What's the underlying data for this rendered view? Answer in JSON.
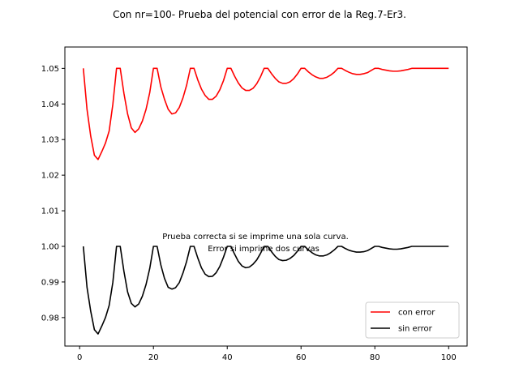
{
  "chart_data": {
    "type": "line",
    "title": "Con nr=100- Prueba del potencial con error de la Reg.7-Er3.",
    "xlabel": "",
    "ylabel": "",
    "xlim": [
      -4,
      105
    ],
    "ylim": [
      0.972,
      1.056
    ],
    "xticks": [
      0,
      20,
      40,
      60,
      80,
      100
    ],
    "yticks": [
      0.98,
      0.99,
      1.0,
      1.01,
      1.02,
      1.03,
      1.04,
      1.05
    ],
    "ytick_labels": [
      "0.98",
      "0.99",
      "1.00",
      "1.01",
      "1.02",
      "1.03",
      "1.04",
      "1.05"
    ],
    "annotation": [
      "Prueba correcta si se imprime una sola curva.",
      "Error si imprime dos curvas"
    ],
    "legend_position": "lower-right",
    "series": [
      {
        "name": "con error",
        "color": "#ff0000",
        "x": [
          1,
          2,
          3,
          4,
          5,
          6,
          7,
          8,
          9,
          10,
          11,
          12,
          13,
          14,
          15,
          16,
          17,
          18,
          19,
          20,
          21,
          22,
          23,
          24,
          25,
          26,
          27,
          28,
          29,
          30,
          31,
          32,
          33,
          34,
          35,
          36,
          37,
          38,
          39,
          40,
          41,
          42,
          43,
          44,
          45,
          46,
          47,
          48,
          49,
          50,
          51,
          52,
          53,
          54,
          55,
          56,
          57,
          58,
          59,
          60,
          61,
          62,
          63,
          64,
          65,
          66,
          67,
          68,
          69,
          70,
          71,
          72,
          73,
          74,
          75,
          76,
          77,
          78,
          79,
          80,
          81,
          82,
          83,
          84,
          85,
          86,
          87,
          88,
          89,
          90,
          91,
          92,
          93,
          94,
          95,
          96,
          97,
          98,
          99,
          100
        ],
        "y": [
          1.05,
          1.0385,
          1.031,
          1.0256,
          1.0244,
          1.0266,
          1.029,
          1.0324,
          1.0399,
          1.05,
          1.05,
          1.043,
          1.0372,
          1.0333,
          1.032,
          1.033,
          1.0352,
          1.0385,
          1.0432,
          1.05,
          1.05,
          1.0448,
          1.0413,
          1.0385,
          1.0372,
          1.0375,
          1.039,
          1.0417,
          1.0453,
          1.05,
          1.05,
          1.0468,
          1.0442,
          1.0424,
          1.0413,
          1.0413,
          1.0422,
          1.044,
          1.0466,
          1.05,
          1.05,
          1.0478,
          1.0459,
          1.0445,
          1.0438,
          1.0438,
          1.0444,
          1.0457,
          1.0476,
          1.05,
          1.05,
          1.0485,
          1.0472,
          1.0462,
          1.0458,
          1.0458,
          1.0462,
          1.0471,
          1.0484,
          1.05,
          1.05,
          1.049,
          1.0482,
          1.0476,
          1.0472,
          1.0472,
          1.0475,
          1.0481,
          1.0489,
          1.05,
          1.05,
          1.0494,
          1.0489,
          1.0485,
          1.0483,
          1.0483,
          1.0485,
          1.0488,
          1.0494,
          1.05,
          1.05,
          1.0497,
          1.0495,
          1.0493,
          1.0492,
          1.0492,
          1.0493,
          1.0495,
          1.0497,
          1.05,
          1.05,
          1.05,
          1.05,
          1.05,
          1.05,
          1.05,
          1.05,
          1.05,
          1.05,
          1.05
        ]
      },
      {
        "name": "sin error",
        "color": "#000000",
        "x": [
          1,
          2,
          3,
          4,
          5,
          6,
          7,
          8,
          9,
          10,
          11,
          12,
          13,
          14,
          15,
          16,
          17,
          18,
          19,
          20,
          21,
          22,
          23,
          24,
          25,
          26,
          27,
          28,
          29,
          30,
          31,
          32,
          33,
          34,
          35,
          36,
          37,
          38,
          39,
          40,
          41,
          42,
          43,
          44,
          45,
          46,
          47,
          48,
          49,
          50,
          51,
          52,
          53,
          54,
          55,
          56,
          57,
          58,
          59,
          60,
          61,
          62,
          63,
          64,
          65,
          66,
          67,
          68,
          69,
          70,
          71,
          72,
          73,
          74,
          75,
          76,
          77,
          78,
          79,
          80,
          81,
          82,
          83,
          84,
          85,
          86,
          87,
          88,
          89,
          90,
          91,
          92,
          93,
          94,
          95,
          96,
          97,
          98,
          99,
          100
        ],
        "y": [
          1.0,
          0.9885,
          0.9818,
          0.9766,
          0.9754,
          0.9776,
          0.98,
          0.9834,
          0.9899,
          1.0,
          1.0,
          0.993,
          0.9872,
          0.984,
          0.983,
          0.9838,
          0.986,
          0.9893,
          0.9938,
          1.0,
          1.0,
          0.9948,
          0.991,
          0.9885,
          0.988,
          0.9884,
          0.9898,
          0.9925,
          0.9958,
          1.0,
          1.0,
          0.9968,
          0.994,
          0.9922,
          0.9915,
          0.9916,
          0.9926,
          0.9944,
          0.997,
          1.0,
          1.0,
          0.9978,
          0.9958,
          0.9945,
          0.994,
          0.9942,
          0.995,
          0.9962,
          0.998,
          1.0,
          1.0,
          0.9985,
          0.9972,
          0.9963,
          0.996,
          0.9961,
          0.9966,
          0.9974,
          0.9986,
          1.0,
          1.0,
          0.999,
          0.9982,
          0.9976,
          0.9973,
          0.9973,
          0.9976,
          0.9982,
          0.999,
          1.0,
          1.0,
          0.9994,
          0.9989,
          0.9986,
          0.9984,
          0.9984,
          0.9985,
          0.9988,
          0.9994,
          1.0,
          1.0,
          0.9997,
          0.9995,
          0.9993,
          0.9992,
          0.9992,
          0.9993,
          0.9995,
          0.9997,
          1.0,
          1.0,
          1.0,
          1.0,
          1.0,
          1.0,
          1.0,
          1.0,
          1.0,
          1.0,
          1.0
        ]
      }
    ]
  }
}
